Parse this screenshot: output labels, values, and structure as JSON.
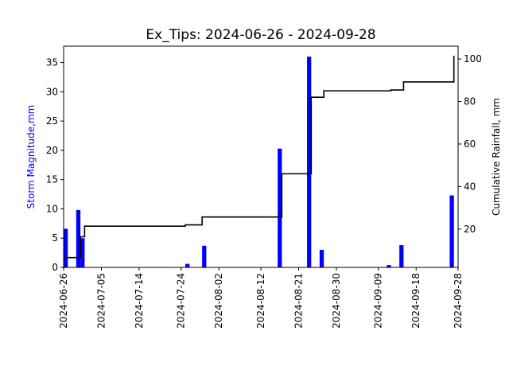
{
  "chart_data": {
    "type": "bar",
    "title": "Ex_Tips: 2024-06-26 - 2024-09-28",
    "xlabel": "",
    "x_axis": {
      "type": "date",
      "range": [
        "2024-06-26",
        "2024-09-28"
      ],
      "ticks": [
        "2024-06-26",
        "2024-07-05",
        "2024-07-14",
        "2024-07-24",
        "2024-08-02",
        "2024-08-12",
        "2024-08-21",
        "2024-08-30",
        "2024-09-09",
        "2024-09-18",
        "2024-09-28"
      ]
    },
    "y_left": {
      "label": "Storm Magnitude,mm",
      "label_color": "#0000ff",
      "range": [
        0,
        37.8
      ],
      "ticks": [
        0,
        5,
        10,
        15,
        20,
        25,
        30,
        35
      ]
    },
    "y_right": {
      "label": "Cumulative Rainfall, mm",
      "range": [
        2,
        106
      ],
      "ticks": [
        20,
        40,
        60,
        80,
        100
      ]
    },
    "series": [
      {
        "type": "bar",
        "axis": "left",
        "color": "#0000ff",
        "points": [
          {
            "start": "2024-06-26",
            "end": "2024-06-27",
            "value": 6.6
          },
          {
            "start": "2024-06-29",
            "end": "2024-06-30",
            "value": 9.8
          },
          {
            "start": "2024-06-30",
            "end": "2024-07-01",
            "value": 5.0
          },
          {
            "start": "2024-07-25",
            "end": "2024-07-26",
            "value": 0.6
          },
          {
            "start": "2024-07-29",
            "end": "2024-07-30",
            "value": 3.7
          },
          {
            "start": "2024-08-16",
            "end": "2024-08-17",
            "value": 20.3
          },
          {
            "start": "2024-08-23",
            "end": "2024-08-24",
            "value": 36.0
          },
          {
            "start": "2024-08-26",
            "end": "2024-08-27",
            "value": 3.0
          },
          {
            "start": "2024-09-11",
            "end": "2024-09-12",
            "value": 0.4
          },
          {
            "start": "2024-09-14",
            "end": "2024-09-15",
            "value": 3.8
          },
          {
            "start": "2024-09-26",
            "end": "2024-09-27",
            "value": 12.3
          }
        ]
      },
      {
        "type": "step",
        "axis": "right",
        "color": "#000000",
        "points": [
          {
            "x": "2024-06-26",
            "y": 6.6
          },
          {
            "x": "2024-06-30",
            "y": 6.6
          },
          {
            "x": "2024-06-30",
            "y": 16.4
          },
          {
            "x": "2024-07-01",
            "y": 16.4
          },
          {
            "x": "2024-07-01",
            "y": 21.4
          },
          {
            "x": "2024-07-25",
            "y": 21.4
          },
          {
            "x": "2024-07-25",
            "y": 22.0
          },
          {
            "x": "2024-07-29",
            "y": 22.0
          },
          {
            "x": "2024-07-29",
            "y": 25.7
          },
          {
            "x": "2024-08-17",
            "y": 25.7
          },
          {
            "x": "2024-08-17",
            "y": 46.0
          },
          {
            "x": "2024-08-24",
            "y": 46.0
          },
          {
            "x": "2024-08-24",
            "y": 82.0
          },
          {
            "x": "2024-08-27",
            "y": 82.0
          },
          {
            "x": "2024-08-27",
            "y": 85.0
          },
          {
            "x": "2024-09-12",
            "y": 85.0
          },
          {
            "x": "2024-09-12",
            "y": 85.4
          },
          {
            "x": "2024-09-15",
            "y": 85.4
          },
          {
            "x": "2024-09-15",
            "y": 89.2
          },
          {
            "x": "2024-09-27",
            "y": 89.2
          },
          {
            "x": "2024-09-27",
            "y": 101.5
          }
        ]
      }
    ],
    "grid": false,
    "legend": "none"
  }
}
